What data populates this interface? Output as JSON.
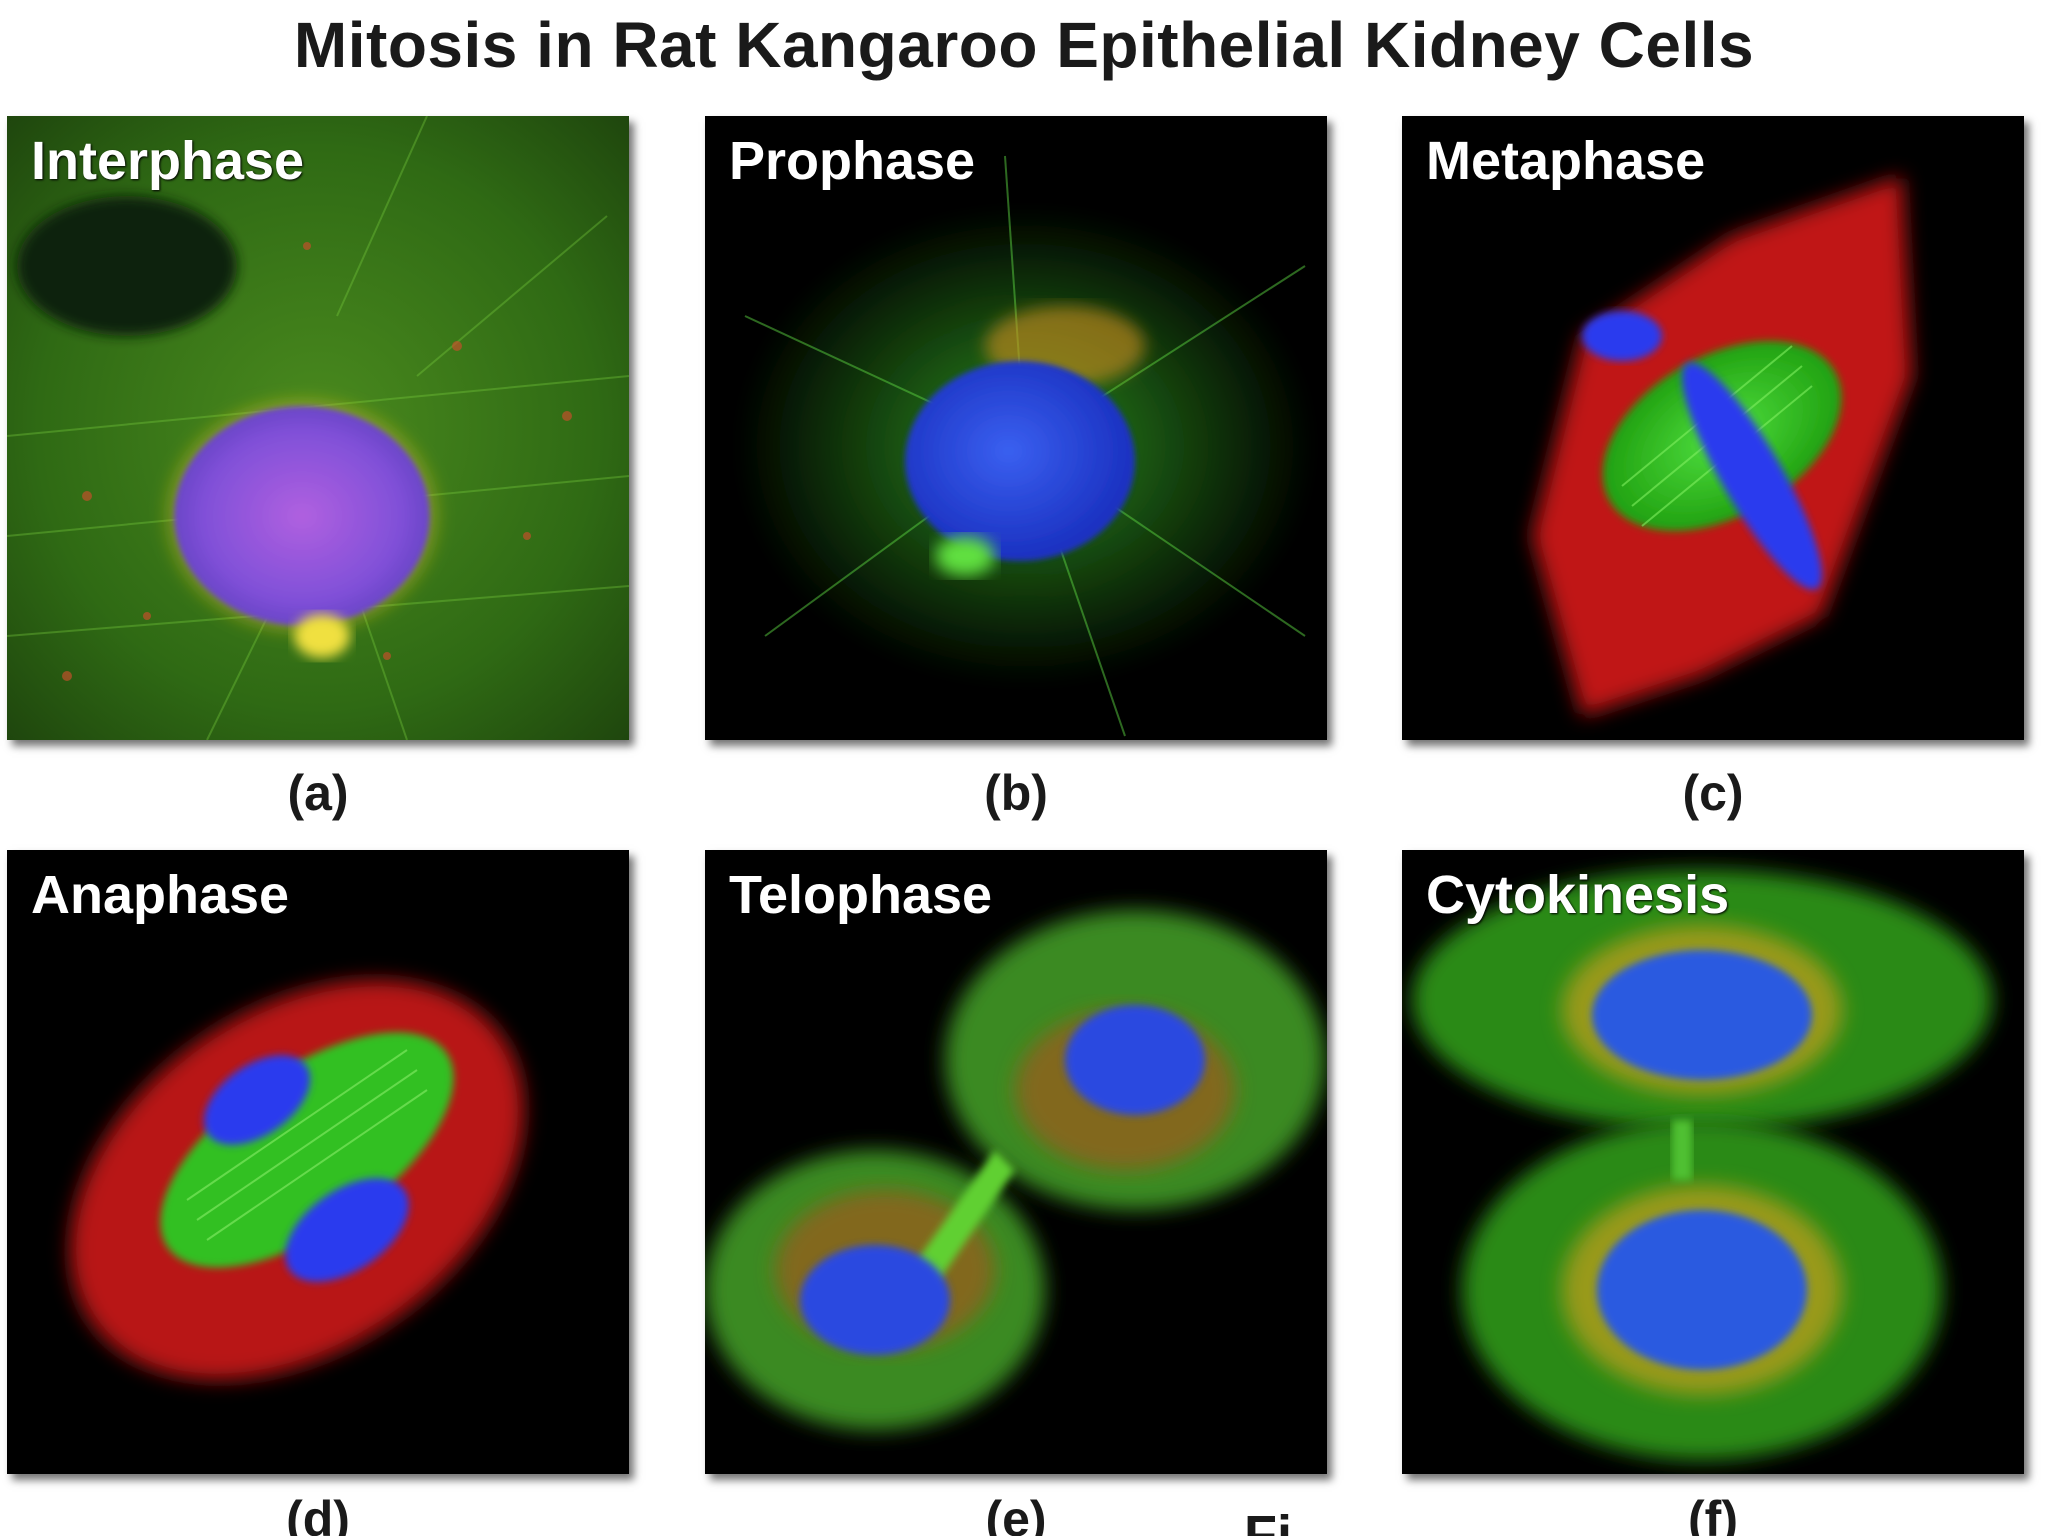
{
  "figure": {
    "title": "Mitosis in Rat Kangaroo Epithelial Kidney Cells",
    "figure_number_partial": "Fi",
    "panels": [
      {
        "label": "Interphase",
        "caption": "(a)"
      },
      {
        "label": "Prophase",
        "caption": "(b)"
      },
      {
        "label": "Metaphase",
        "caption": "(c)"
      },
      {
        "label": "Anaphase",
        "caption": "(d)"
      },
      {
        "label": "Telophase",
        "caption": "(e)"
      },
      {
        "label": "Cytokinesis",
        "caption": "(f)"
      }
    ]
  },
  "colors": {
    "microtubules": "#22cc22",
    "chromosomes": "#2244ee",
    "actin": "#dd2222",
    "panel_background": "#000000"
  }
}
